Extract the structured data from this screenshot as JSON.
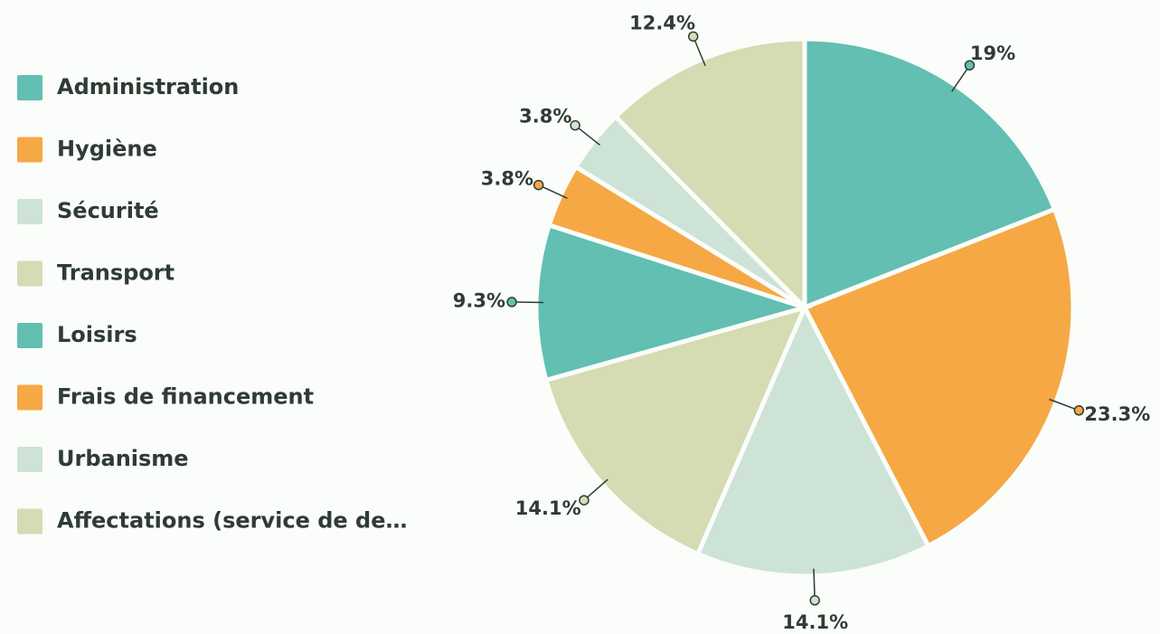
{
  "chart_data": {
    "type": "pie",
    "categories": [
      "Administration",
      "Hygiène",
      "Sécurité",
      "Transport",
      "Loisirs",
      "Frais de financement",
      "Urbanisme",
      "Affectations (service de de…"
    ],
    "values": [
      19,
      23.3,
      14.1,
      14.1,
      9.3,
      3.8,
      3.8,
      12.4
    ],
    "value_labels": [
      "19%",
      "23.3%",
      "14.1%",
      "14.1%",
      "9.3%",
      "3.8%",
      "3.8%",
      "12.4%"
    ],
    "colors": [
      "#62bfb2",
      "#f6a845",
      "#cde3d5",
      "#d5dbb2",
      "#62bfb2",
      "#f6a845",
      "#cde3d5",
      "#d5dbb2"
    ],
    "legend": "left"
  }
}
